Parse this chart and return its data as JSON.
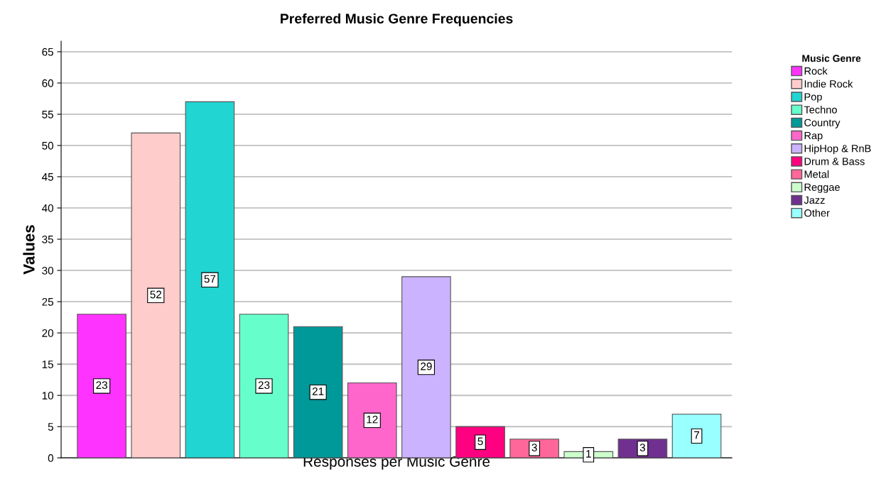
{
  "chart_data": {
    "type": "bar",
    "title": "Preferred Music Genre Frequencies",
    "xlabel": "Responses per Music Genre",
    "ylabel": "Values",
    "legend_title": "Music Genre",
    "categories": [
      null,
      null,
      null,
      null,
      null,
      null,
      null,
      null,
      null,
      null,
      null,
      null
    ],
    "series": [
      {
        "name": "Rock",
        "color": "#ff33ff",
        "values": [
          23,
          null,
          null,
          null,
          null,
          null,
          null,
          null,
          null,
          null,
          null,
          null
        ]
      },
      {
        "name": "Indie Rock",
        "color": "#ffcccc",
        "values": [
          null,
          52,
          null,
          null,
          null,
          null,
          null,
          null,
          null,
          null,
          null,
          null
        ]
      },
      {
        "name": "Pop",
        "color": "#20d5d2",
        "values": [
          null,
          null,
          57,
          null,
          null,
          null,
          null,
          null,
          null,
          null,
          null,
          null
        ]
      },
      {
        "name": "Techno",
        "color": "#66ffcc",
        "values": [
          null,
          null,
          null,
          23,
          null,
          null,
          null,
          null,
          null,
          null,
          null,
          null
        ]
      },
      {
        "name": "Country",
        "color": "#009999",
        "values": [
          null,
          null,
          null,
          null,
          21,
          null,
          null,
          null,
          null,
          null,
          null,
          null
        ]
      },
      {
        "name": "Rap",
        "color": "#ff66cc",
        "values": [
          null,
          null,
          null,
          null,
          null,
          12,
          null,
          null,
          null,
          null,
          null,
          null
        ]
      },
      {
        "name": "HipHop & RnB",
        "color": "#ccb3ff",
        "values": [
          null,
          null,
          null,
          null,
          null,
          null,
          29,
          null,
          null,
          null,
          null,
          null
        ]
      },
      {
        "name": "Drum & Bass",
        "color": "#ff0080",
        "values": [
          null,
          null,
          null,
          null,
          null,
          null,
          null,
          5,
          null,
          null,
          null,
          null
        ]
      },
      {
        "name": "Metal",
        "color": "#ff6699",
        "values": [
          null,
          null,
          null,
          null,
          null,
          null,
          null,
          null,
          3,
          null,
          null,
          null
        ]
      },
      {
        "name": "Reggae",
        "color": "#ccffcc",
        "values": [
          null,
          null,
          null,
          null,
          null,
          null,
          null,
          null,
          null,
          1,
          null,
          null
        ]
      },
      {
        "name": "Jazz",
        "color": "#703090",
        "values": [
          null,
          null,
          null,
          null,
          null,
          null,
          null,
          null,
          null,
          null,
          3,
          null
        ]
      },
      {
        "name": "Other",
        "color": "#99ffff",
        "values": [
          null,
          null,
          null,
          null,
          null,
          null,
          null,
          null,
          null,
          null,
          null,
          7
        ]
      }
    ],
    "ylim": [
      0,
      66.7
    ],
    "yticks": [
      0,
      5,
      10,
      15,
      20,
      25,
      30,
      35,
      40,
      45,
      50,
      55,
      60,
      65
    ],
    "grid": "y",
    "legend": "top right",
    "data_labels": true
  }
}
